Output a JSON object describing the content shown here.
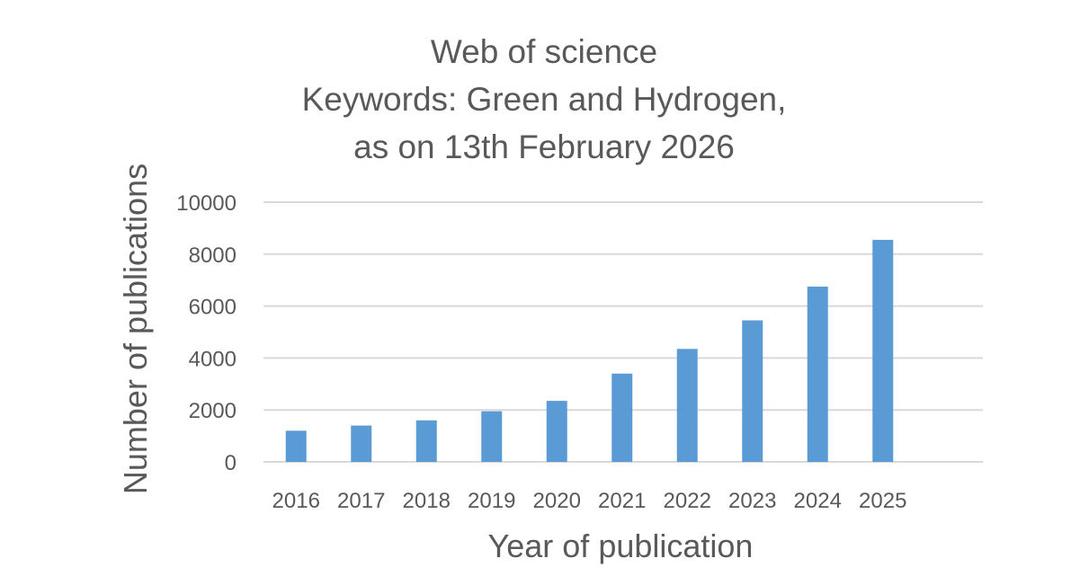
{
  "chart_data": {
    "type": "bar",
    "title_lines": [
      "Web of science",
      "Keywords: Green and Hydrogen,",
      "as on 13th February 2026"
    ],
    "xlabel": "Year of publication",
    "ylabel": "Number of publications",
    "categories": [
      "2016",
      "2017",
      "2018",
      "2019",
      "2020",
      "2021",
      "2022",
      "2023",
      "2024",
      "2025"
    ],
    "values": [
      1200,
      1400,
      1600,
      1950,
      2350,
      3400,
      4350,
      5450,
      6750,
      8550
    ],
    "ylim": [
      0,
      10000
    ],
    "yticks": [
      "0",
      "2000",
      "4000",
      "6000",
      "8000",
      "10000"
    ],
    "grid": true,
    "legend": "none",
    "colors": {
      "bar": "#5B9BD5",
      "grid": "#D9D9D9",
      "text": "#595959"
    }
  }
}
